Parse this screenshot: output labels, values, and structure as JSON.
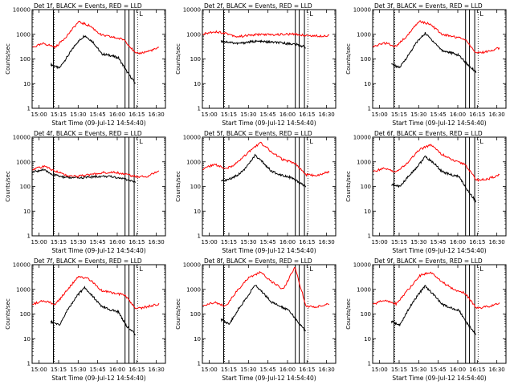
{
  "chart_data": [
    {
      "type": "line",
      "title": "Det 1f, BLACK = Events, RED = LLD",
      "xlabel": "Start Time (09-Jul-12 14:54:40)",
      "ylabel": "Counts/sec",
      "x_ticks": [
        "15:00",
        "15:15",
        "15:30",
        "15:45",
        "16:00",
        "16:15",
        "16:30"
      ],
      "y_scale": "log",
      "ylim": [
        1,
        10000
      ],
      "y_ticks": [
        "1",
        "10",
        "100",
        "1000",
        "10000"
      ],
      "xlim": [
        "14:54:40",
        "16:37:00"
      ],
      "solid_markers": [
        "15:11",
        "16:06",
        "16:09",
        "16:13"
      ],
      "dotted_markers": [
        "15:11",
        "16:15"
      ],
      "legend_marker": "L",
      "series": [
        {
          "color": "#000000",
          "start": "15:09",
          "end": "16:14",
          "values": [
            60,
            42,
            130,
            420,
            900,
            480,
            160,
            140,
            110,
            30,
            10
          ]
        },
        {
          "color": "#ff0000",
          "start": "14:55",
          "end": "16:32",
          "values": [
            300,
            420,
            300,
            880,
            3200,
            2200,
            920,
            760,
            600,
            160,
            200,
            280
          ]
        }
      ]
    },
    {
      "type": "line",
      "title": "Det 2f, BLACK = Events, RED = LLD",
      "xlabel": "Start Time (09-Jul-12 14:54:40)",
      "ylabel": "Counts/sec",
      "x_ticks": [
        "15:00",
        "15:15",
        "15:30",
        "15:45",
        "16:00",
        "16:15",
        "16:30"
      ],
      "y_scale": "log",
      "ylim": [
        1,
        10000
      ],
      "y_ticks": [
        "1",
        "10",
        "100",
        "1000",
        "10000"
      ],
      "xlim": [
        "14:54:40",
        "16:37:00"
      ],
      "solid_markers": [
        "15:11",
        "16:06",
        "16:09",
        "16:13"
      ],
      "dotted_markers": [
        "15:11",
        "16:15"
      ],
      "legend_marker": "L",
      "series": [
        {
          "color": "#000000",
          "start": "15:09",
          "end": "16:14",
          "values": [
            520,
            480,
            420,
            470,
            520,
            500,
            480,
            450,
            420,
            380,
            300
          ]
        },
        {
          "color": "#ff0000",
          "start": "14:55",
          "end": "16:32",
          "values": [
            1000,
            1300,
            1100,
            800,
            900,
            1000,
            950,
            1000,
            1000,
            900,
            850,
            900
          ]
        }
      ]
    },
    {
      "type": "line",
      "title": "Det 3f, BLACK = Events, RED = LLD",
      "xlabel": "Start Time (09-Jul-12 14:54:40)",
      "ylabel": "Counts/sec",
      "x_ticks": [
        "15:00",
        "15:15",
        "15:30",
        "15:45",
        "16:00",
        "16:15",
        "16:30"
      ],
      "y_scale": "log",
      "ylim": [
        1,
        10000
      ],
      "y_ticks": [
        "1",
        "10",
        "100",
        "1000",
        "10000"
      ],
      "xlim": [
        "14:54:40",
        "16:37:00"
      ],
      "solid_markers": [
        "15:11",
        "16:06",
        "16:09",
        "16:13"
      ],
      "dotted_markers": [
        "15:11",
        "16:15"
      ],
      "legend_marker": "L",
      "series": [
        {
          "color": "#000000",
          "start": "15:09",
          "end": "16:14",
          "values": [
            60,
            45,
            140,
            480,
            1100,
            500,
            220,
            180,
            140,
            60,
            30
          ]
        },
        {
          "color": "#ff0000",
          "start": "14:55",
          "end": "16:32",
          "values": [
            300,
            450,
            320,
            900,
            3500,
            2500,
            1000,
            800,
            650,
            170,
            200,
            280
          ]
        }
      ]
    },
    {
      "type": "line",
      "title": "Det 4f, BLACK = Events, RED = LLD",
      "xlabel": "Start Time (09-Jul-12 14:54:40)",
      "ylabel": "Counts/sec",
      "x_ticks": [
        "15:00",
        "15:15",
        "15:30",
        "15:45",
        "16:00",
        "16:15",
        "16:30"
      ],
      "y_scale": "log",
      "ylim": [
        1,
        10000
      ],
      "y_ticks": [
        "1",
        "10",
        "100",
        "1000",
        "10000"
      ],
      "xlim": [
        "14:54:40",
        "16:37:00"
      ],
      "solid_markers": [
        "15:11",
        "16:06",
        "16:09",
        "16:13"
      ],
      "dotted_markers": [
        "15:11",
        "16:15"
      ],
      "legend_marker": "L",
      "series": [
        {
          "color": "#000000",
          "start": "14:55",
          "end": "16:14",
          "values": [
            380,
            480,
            300,
            240,
            220,
            230,
            250,
            260,
            240,
            200,
            150
          ]
        },
        {
          "color": "#ff0000",
          "start": "14:55",
          "end": "16:32",
          "values": [
            500,
            650,
            420,
            280,
            260,
            300,
            360,
            380,
            320,
            250,
            260,
            420
          ]
        }
      ]
    },
    {
      "type": "line",
      "title": "Det 5f, BLACK = Events, RED = LLD",
      "xlabel": "Start Time (09-Jul-12 14:54:40)",
      "ylabel": "Counts/sec",
      "x_ticks": [
        "15:00",
        "15:15",
        "15:30",
        "15:45",
        "16:00",
        "16:15",
        "16:30"
      ],
      "y_scale": "log",
      "ylim": [
        1,
        10000
      ],
      "y_ticks": [
        "1",
        "10",
        "100",
        "1000",
        "10000"
      ],
      "xlim": [
        "14:54:40",
        "16:37:00"
      ],
      "solid_markers": [
        "15:11",
        "16:06",
        "16:09",
        "16:13"
      ],
      "dotted_markers": [
        "15:11",
        "16:15"
      ],
      "legend_marker": "L",
      "series": [
        {
          "color": "#000000",
          "start": "15:09",
          "end": "16:14",
          "values": [
            160,
            200,
            300,
            600,
            1800,
            900,
            400,
            300,
            250,
            160,
            100
          ]
        },
        {
          "color": "#ff0000",
          "start": "14:55",
          "end": "16:32",
          "values": [
            500,
            800,
            500,
            900,
            2500,
            6000,
            2500,
            1200,
            900,
            300,
            280,
            400
          ]
        }
      ]
    },
    {
      "type": "line",
      "title": "Det 6f, BLACK = Events, RED = LLD",
      "xlabel": "Start Time (09-Jul-12 14:54:40)",
      "ylabel": "Counts/sec",
      "x_ticks": [
        "15:00",
        "15:15",
        "15:30",
        "15:45",
        "16:00",
        "16:15",
        "16:30"
      ],
      "y_scale": "log",
      "ylim": [
        1,
        10000
      ],
      "y_ticks": [
        "1",
        "10",
        "100",
        "1000",
        "10000"
      ],
      "xlim": [
        "14:54:40",
        "16:37:00"
      ],
      "solid_markers": [
        "15:11",
        "16:06",
        "16:09",
        "16:13"
      ],
      "dotted_markers": [
        "15:11",
        "16:15"
      ],
      "legend_marker": "L",
      "series": [
        {
          "color": "#000000",
          "start": "15:09",
          "end": "16:14",
          "values": [
            120,
            100,
            250,
            600,
            1600,
            900,
            400,
            300,
            250,
            70,
            25
          ]
        },
        {
          "color": "#ff0000",
          "start": "14:55",
          "end": "16:32",
          "values": [
            400,
            550,
            380,
            900,
            3000,
            5000,
            2000,
            1100,
            800,
            180,
            200,
            300
          ]
        }
      ]
    },
    {
      "type": "line",
      "title": "Det 7f, BLACK = Events, RED = LLD",
      "xlabel": "Start Time (09-Jul-12 14:54:40)",
      "ylabel": "Counts/sec",
      "x_ticks": [
        "15:00",
        "15:15",
        "15:30",
        "15:45",
        "16:00",
        "16:15",
        "16:30"
      ],
      "y_scale": "log",
      "ylim": [
        1,
        10000
      ],
      "y_ticks": [
        "1",
        "10",
        "100",
        "1000",
        "10000"
      ],
      "xlim": [
        "14:54:40",
        "16:37:00"
      ],
      "solid_markers": [
        "15:11",
        "16:06",
        "16:09",
        "16:13"
      ],
      "dotted_markers": [
        "15:11",
        "16:15"
      ],
      "legend_marker": "L",
      "series": [
        {
          "color": "#000000",
          "start": "15:09",
          "end": "16:14",
          "values": [
            50,
            35,
            150,
            500,
            1200,
            500,
            200,
            150,
            120,
            30,
            15
          ]
        },
        {
          "color": "#ff0000",
          "start": "14:55",
          "end": "16:32",
          "values": [
            250,
            350,
            250,
            900,
            3500,
            2500,
            900,
            700,
            600,
            160,
            200,
            250
          ]
        }
      ]
    },
    {
      "type": "line",
      "title": "Det 8f, BLACK = Events, RED = LLD",
      "xlabel": "Start Time (09-Jul-12 14:54:40)",
      "ylabel": "Counts/sec",
      "x_ticks": [
        "15:00",
        "15:15",
        "15:30",
        "15:45",
        "16:00",
        "16:15",
        "16:30"
      ],
      "y_scale": "log",
      "ylim": [
        1,
        10000
      ],
      "y_ticks": [
        "1",
        "10",
        "100",
        "1000",
        "10000"
      ],
      "xlim": [
        "14:54:40",
        "16:37:00"
      ],
      "solid_markers": [
        "15:11",
        "16:06",
        "16:09",
        "16:13"
      ],
      "dotted_markers": [
        "15:11",
        "16:15"
      ],
      "legend_marker": "L",
      "series": [
        {
          "color": "#000000",
          "start": "15:09",
          "end": "16:14",
          "values": [
            60,
            40,
            150,
            450,
            1500,
            700,
            300,
            200,
            150,
            50,
            20
          ]
        },
        {
          "color": "#ff0000",
          "start": "14:55",
          "end": "16:32",
          "values": [
            200,
            300,
            200,
            900,
            3000,
            5000,
            2000,
            1000,
            8000,
            200,
            200,
            250
          ]
        }
      ]
    },
    {
      "type": "line",
      "title": "Det 9f, BLACK = Events, RED = LLD",
      "xlabel": "Start Time (09-Jul-12 14:54:40)",
      "ylabel": "Counts/sec",
      "x_ticks": [
        "15:00",
        "15:15",
        "15:30",
        "15:45",
        "16:00",
        "16:15",
        "16:30"
      ],
      "y_scale": "log",
      "ylim": [
        1,
        10000
      ],
      "y_ticks": [
        "1",
        "10",
        "100",
        "1000",
        "10000"
      ],
      "xlim": [
        "14:54:40",
        "16:37:00"
      ],
      "solid_markers": [
        "15:11",
        "16:06",
        "16:09",
        "16:13"
      ],
      "dotted_markers": [
        "15:11",
        "16:15"
      ],
      "legend_marker": "L",
      "series": [
        {
          "color": "#000000",
          "start": "15:09",
          "end": "16:14",
          "values": [
            50,
            35,
            150,
            500,
            1400,
            600,
            250,
            180,
            140,
            40,
            15
          ]
        },
        {
          "color": "#ff0000",
          "start": "14:55",
          "end": "16:32",
          "values": [
            250,
            380,
            260,
            900,
            3500,
            5000,
            2000,
            1000,
            700,
            170,
            200,
            260
          ]
        }
      ]
    }
  ]
}
